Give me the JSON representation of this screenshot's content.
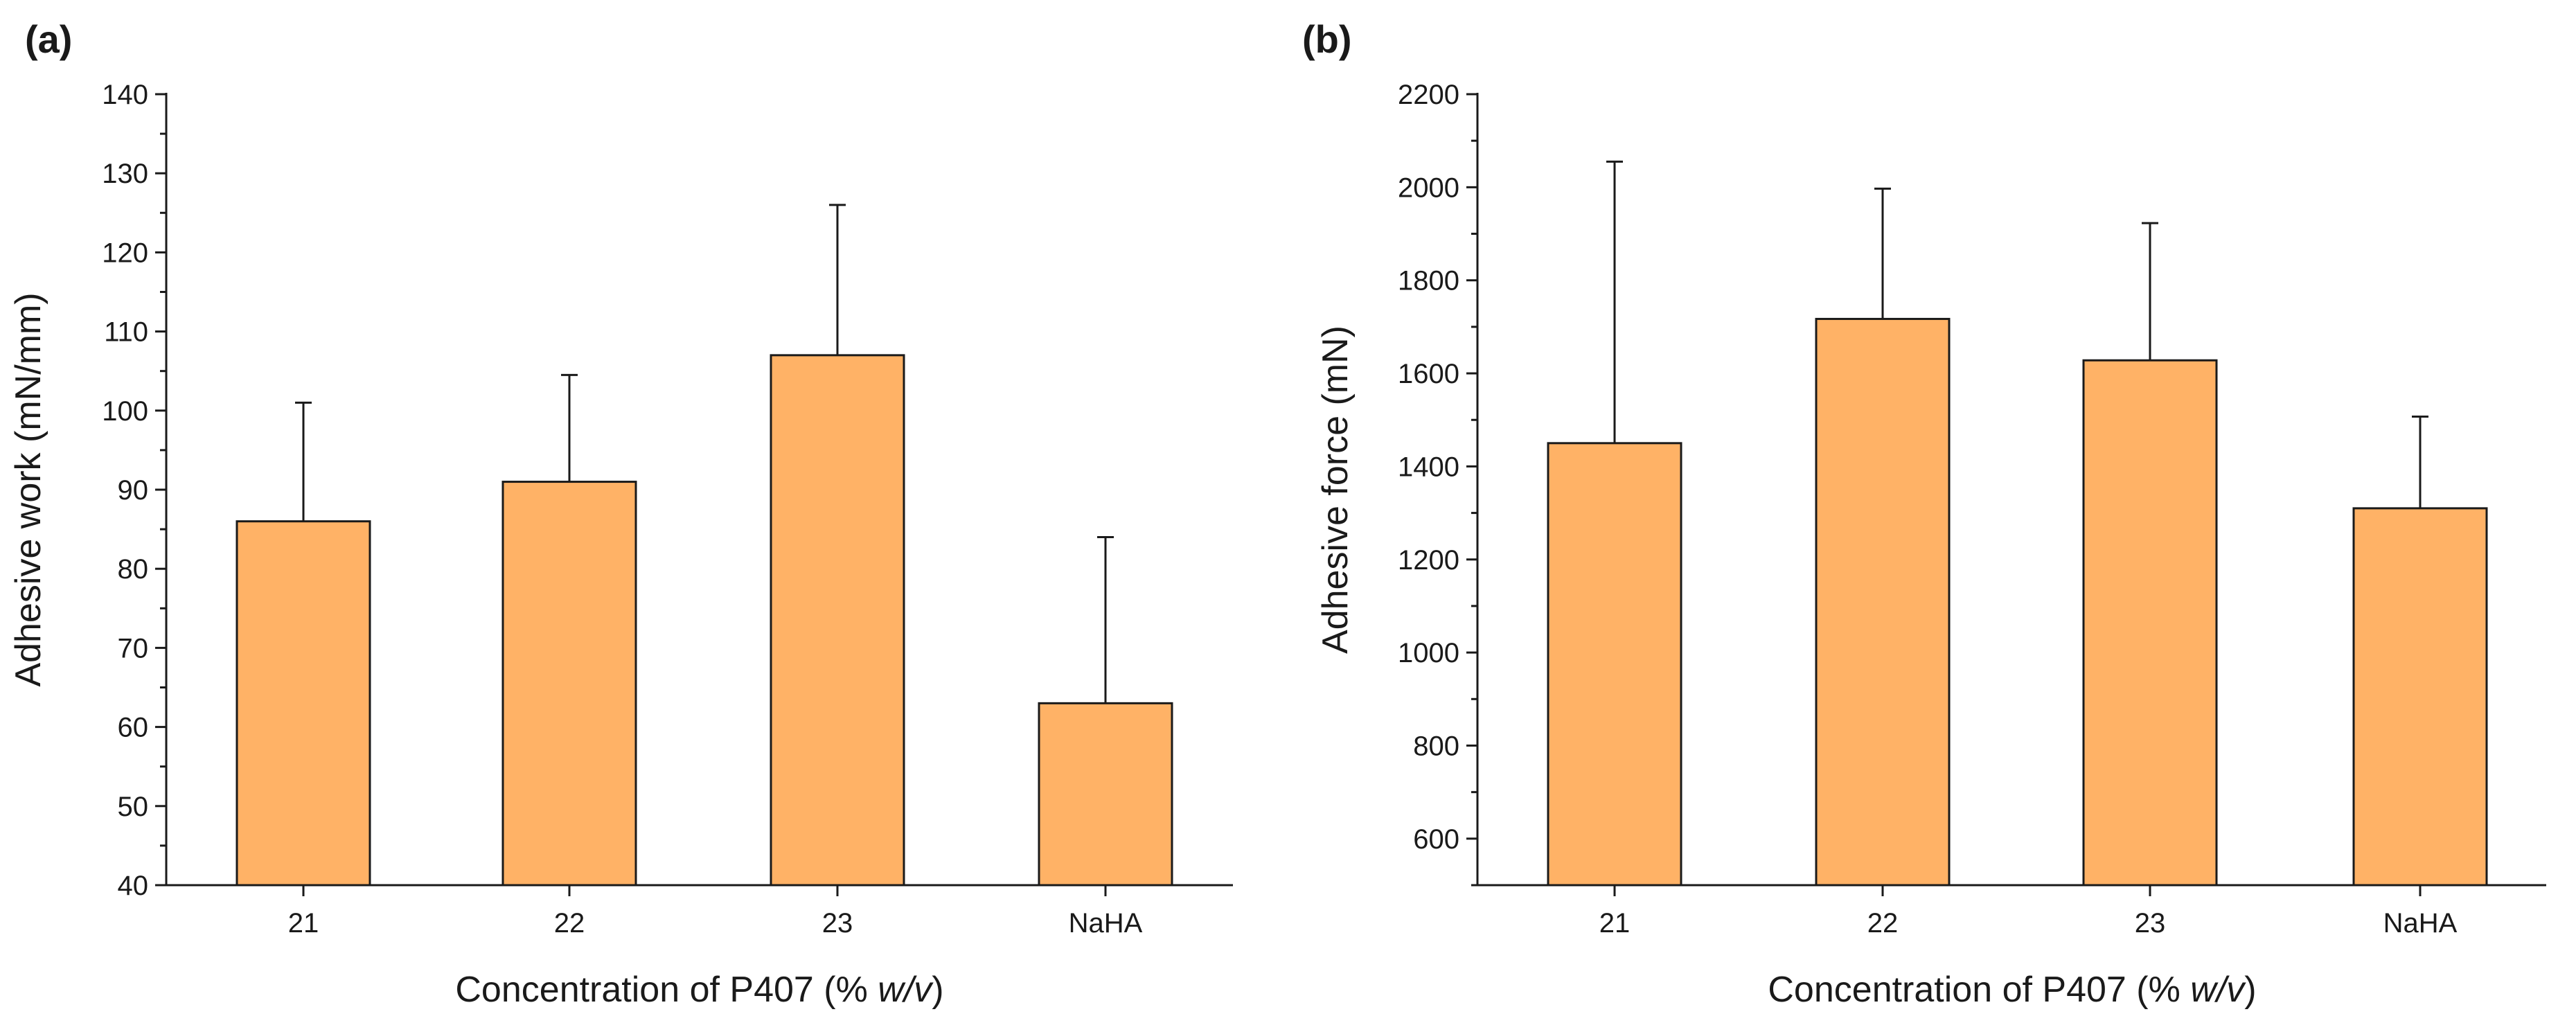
{
  "figure": {
    "bar_color": "#FFB266",
    "stroke_color": "#1a1a1a"
  },
  "chart_data": [
    {
      "panel_label": "(a)",
      "type": "bar",
      "categories": [
        "21",
        "22",
        "23",
        "NaHA"
      ],
      "values": [
        86,
        91,
        107,
        63
      ],
      "error_plus": [
        15,
        13.5,
        19,
        21
      ],
      "ylabel": "Adhesive work (mN/mm)",
      "xlabel_parts": [
        "Concentration of P407 (% ",
        "w/v",
        ")"
      ],
      "ylim": [
        40,
        140
      ],
      "yticks": [
        40,
        50,
        60,
        70,
        80,
        90,
        100,
        110,
        120,
        130,
        140
      ],
      "y_minor_step": 5,
      "grid": false
    },
    {
      "panel_label": "(b)",
      "type": "bar",
      "categories": [
        "21",
        "22",
        "23",
        "NaHA"
      ],
      "values": [
        1450,
        1717,
        1628,
        1310
      ],
      "error_plus": [
        605,
        280,
        295,
        197
      ],
      "ylabel": "Adhesive force (mN)",
      "xlabel_parts": [
        "Concentration of P407 (% ",
        "w/v",
        ")"
      ],
      "ylim": [
        500,
        2200
      ],
      "yticks": [
        600,
        800,
        1000,
        1200,
        1400,
        1600,
        1800,
        2000,
        2200
      ],
      "y_minor_step": 100,
      "grid": false
    }
  ]
}
